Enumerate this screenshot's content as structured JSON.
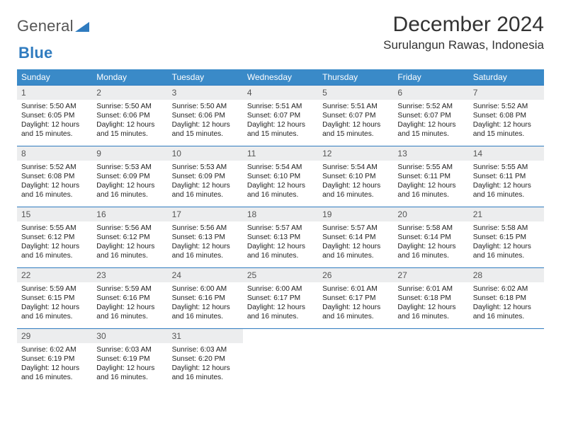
{
  "brand": {
    "part1": "General",
    "part2": "Blue"
  },
  "title": "December 2024",
  "location": "Surulangun Rawas, Indonesia",
  "colors": {
    "header_bg": "#3a8ac8",
    "row_border": "#2f7bbf",
    "daynum_bg": "#ecedee",
    "text": "#222222",
    "background": "#ffffff"
  },
  "weekdays": [
    "Sunday",
    "Monday",
    "Tuesday",
    "Wednesday",
    "Thursday",
    "Friday",
    "Saturday"
  ],
  "labels": {
    "sunrise_prefix": "Sunrise: ",
    "sunset_prefix": "Sunset: ",
    "daylight_prefix": "Daylight: "
  },
  "days": [
    {
      "n": "1",
      "sunrise": "5:50 AM",
      "sunset": "6:05 PM",
      "daylight": "12 hours and 15 minutes."
    },
    {
      "n": "2",
      "sunrise": "5:50 AM",
      "sunset": "6:06 PM",
      "daylight": "12 hours and 15 minutes."
    },
    {
      "n": "3",
      "sunrise": "5:50 AM",
      "sunset": "6:06 PM",
      "daylight": "12 hours and 15 minutes."
    },
    {
      "n": "4",
      "sunrise": "5:51 AM",
      "sunset": "6:07 PM",
      "daylight": "12 hours and 15 minutes."
    },
    {
      "n": "5",
      "sunrise": "5:51 AM",
      "sunset": "6:07 PM",
      "daylight": "12 hours and 15 minutes."
    },
    {
      "n": "6",
      "sunrise": "5:52 AM",
      "sunset": "6:07 PM",
      "daylight": "12 hours and 15 minutes."
    },
    {
      "n": "7",
      "sunrise": "5:52 AM",
      "sunset": "6:08 PM",
      "daylight": "12 hours and 15 minutes."
    },
    {
      "n": "8",
      "sunrise": "5:52 AM",
      "sunset": "6:08 PM",
      "daylight": "12 hours and 16 minutes."
    },
    {
      "n": "9",
      "sunrise": "5:53 AM",
      "sunset": "6:09 PM",
      "daylight": "12 hours and 16 minutes."
    },
    {
      "n": "10",
      "sunrise": "5:53 AM",
      "sunset": "6:09 PM",
      "daylight": "12 hours and 16 minutes."
    },
    {
      "n": "11",
      "sunrise": "5:54 AM",
      "sunset": "6:10 PM",
      "daylight": "12 hours and 16 minutes."
    },
    {
      "n": "12",
      "sunrise": "5:54 AM",
      "sunset": "6:10 PM",
      "daylight": "12 hours and 16 minutes."
    },
    {
      "n": "13",
      "sunrise": "5:55 AM",
      "sunset": "6:11 PM",
      "daylight": "12 hours and 16 minutes."
    },
    {
      "n": "14",
      "sunrise": "5:55 AM",
      "sunset": "6:11 PM",
      "daylight": "12 hours and 16 minutes."
    },
    {
      "n": "15",
      "sunrise": "5:55 AM",
      "sunset": "6:12 PM",
      "daylight": "12 hours and 16 minutes."
    },
    {
      "n": "16",
      "sunrise": "5:56 AM",
      "sunset": "6:12 PM",
      "daylight": "12 hours and 16 minutes."
    },
    {
      "n": "17",
      "sunrise": "5:56 AM",
      "sunset": "6:13 PM",
      "daylight": "12 hours and 16 minutes."
    },
    {
      "n": "18",
      "sunrise": "5:57 AM",
      "sunset": "6:13 PM",
      "daylight": "12 hours and 16 minutes."
    },
    {
      "n": "19",
      "sunrise": "5:57 AM",
      "sunset": "6:14 PM",
      "daylight": "12 hours and 16 minutes."
    },
    {
      "n": "20",
      "sunrise": "5:58 AM",
      "sunset": "6:14 PM",
      "daylight": "12 hours and 16 minutes."
    },
    {
      "n": "21",
      "sunrise": "5:58 AM",
      "sunset": "6:15 PM",
      "daylight": "12 hours and 16 minutes."
    },
    {
      "n": "22",
      "sunrise": "5:59 AM",
      "sunset": "6:15 PM",
      "daylight": "12 hours and 16 minutes."
    },
    {
      "n": "23",
      "sunrise": "5:59 AM",
      "sunset": "6:16 PM",
      "daylight": "12 hours and 16 minutes."
    },
    {
      "n": "24",
      "sunrise": "6:00 AM",
      "sunset": "6:16 PM",
      "daylight": "12 hours and 16 minutes."
    },
    {
      "n": "25",
      "sunrise": "6:00 AM",
      "sunset": "6:17 PM",
      "daylight": "12 hours and 16 minutes."
    },
    {
      "n": "26",
      "sunrise": "6:01 AM",
      "sunset": "6:17 PM",
      "daylight": "12 hours and 16 minutes."
    },
    {
      "n": "27",
      "sunrise": "6:01 AM",
      "sunset": "6:18 PM",
      "daylight": "12 hours and 16 minutes."
    },
    {
      "n": "28",
      "sunrise": "6:02 AM",
      "sunset": "6:18 PM",
      "daylight": "12 hours and 16 minutes."
    },
    {
      "n": "29",
      "sunrise": "6:02 AM",
      "sunset": "6:19 PM",
      "daylight": "12 hours and 16 minutes."
    },
    {
      "n": "30",
      "sunrise": "6:03 AM",
      "sunset": "6:19 PM",
      "daylight": "12 hours and 16 minutes."
    },
    {
      "n": "31",
      "sunrise": "6:03 AM",
      "sunset": "6:20 PM",
      "daylight": "12 hours and 16 minutes."
    }
  ]
}
